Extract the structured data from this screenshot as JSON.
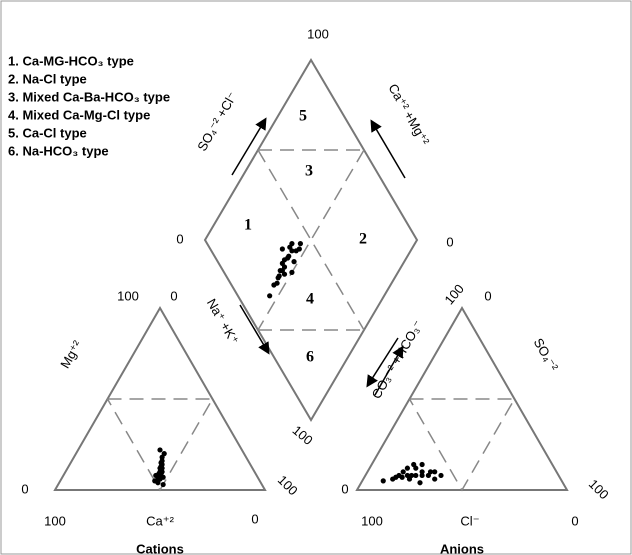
{
  "chart_data": {
    "type": "piper",
    "legend": [
      "1. Ca-MG-HCO₃ type",
      "2. Na-Cl type",
      "3. Mixed Ca-Ba-HCO₃ type",
      "4. Mixed Ca-Mg-Cl type",
      "5. Ca-Cl type",
      "6. Na-HCO₃ type"
    ],
    "zones": [
      "1",
      "2",
      "3",
      "4",
      "5",
      "6"
    ],
    "axis_labels": {
      "ca": "Ca⁺²",
      "cl": "Cl⁻",
      "mg": "Mg⁺²",
      "so4": "SO₄⁻²",
      "so4_cl": "SO₄⁻² +Cl⁻",
      "ca_mg": "Ca⁺² +Mg⁺²",
      "na_k": "Na⁺ +K⁺",
      "co3_hco3": "CO₃⁻² +HCO₃⁻",
      "cations": "Cations",
      "anions": "Anions"
    },
    "corner_labels": {
      "diamond_top": 100,
      "diamond_left": 0,
      "diamond_right": 0,
      "diamond_bottom": 100,
      "cation_top_left": 100,
      "cation_top_right": 0,
      "cation_left": 0,
      "cation_bottom_left": 100,
      "cation_bottom_right": 0,
      "cation_right": 100,
      "anion_top_left": 100,
      "anion_top_right": 0,
      "anion_left": 0,
      "anion_bottom_left": 100,
      "anion_bottom_right": 0,
      "anion_right": 100
    },
    "samples": [
      [
        45,
        10,
        45,
        70,
        22,
        8
      ],
      [
        48,
        8,
        44,
        65,
        27,
        8
      ],
      [
        50,
        5,
        45,
        75,
        18,
        7
      ],
      [
        44,
        12,
        44,
        62,
        30,
        8
      ],
      [
        42,
        15,
        43,
        68,
        24,
        8
      ],
      [
        47,
        6,
        47,
        72,
        20,
        8
      ],
      [
        40,
        18,
        42,
        60,
        30,
        10
      ],
      [
        46,
        9,
        45,
        80,
        14,
        6
      ],
      [
        43,
        13,
        44,
        66,
        22,
        12
      ],
      [
        49,
        4,
        47,
        58,
        32,
        10
      ],
      [
        41,
        16,
        43,
        70,
        18,
        12
      ],
      [
        45,
        7,
        48,
        64,
        26,
        10
      ],
      [
        38,
        20,
        42,
        62,
        24,
        14
      ],
      [
        44,
        11,
        45,
        76,
        16,
        8
      ],
      [
        47,
        3,
        50,
        68,
        28,
        4
      ],
      [
        42,
        14,
        44,
        73,
        17,
        10
      ],
      [
        46,
        8,
        46,
        60,
        34,
        6
      ],
      [
        39,
        22,
        39,
        66,
        20,
        14
      ],
      [
        44,
        10,
        46,
        85,
        10,
        5
      ],
      [
        48,
        6,
        46,
        56,
        36,
        8
      ],
      [
        43,
        12,
        45,
        72,
        22,
        6
      ],
      [
        45,
        9,
        46,
        78,
        15,
        7
      ]
    ],
    "point_color": "#000000"
  }
}
